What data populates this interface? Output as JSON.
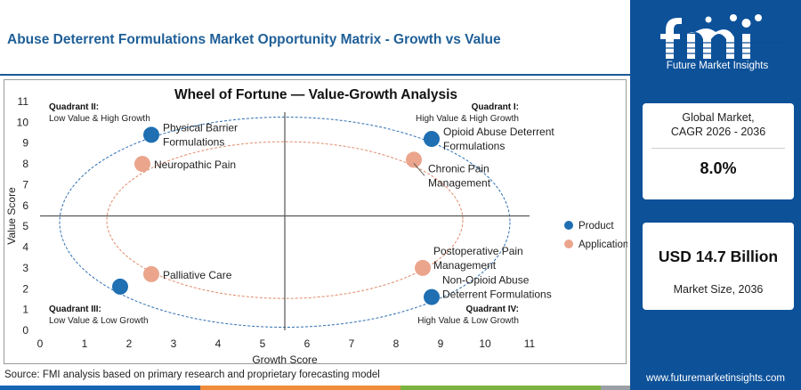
{
  "page": {
    "title": "Abuse Deterrent Formulations Market Opportunity Matrix - Growth vs Value",
    "source": "Source: FMI analysis based on primary research and proprietary forecasting model"
  },
  "brand": {
    "logo_text": "Future Market Insights",
    "website": "www.futuremarketinsights.com",
    "primary_color": "#0d5199",
    "bottom_bar_colors": [
      "#1565b5",
      "#f08c3a",
      "#7ab340",
      "#9aa0a6"
    ]
  },
  "stats": {
    "cagr_label_line1": "Global Market,",
    "cagr_label_line2": "CAGR 2026 - 2036",
    "cagr_value": "8.0%",
    "size_value": "USD 14.7 Billion",
    "size_label": "Market Size, 2036"
  },
  "chart_data": {
    "type": "scatter",
    "title": "Wheel of Fortune — Value-Growth Analysis",
    "xlabel": "Growth Score",
    "ylabel": "Value Score",
    "xlim": [
      0,
      11
    ],
    "ylim": [
      0,
      11
    ],
    "xticks": [
      0,
      1,
      2,
      3,
      4,
      5,
      6,
      7,
      8,
      9,
      10,
      11
    ],
    "yticks": [
      0,
      1,
      2,
      3,
      4,
      5,
      6,
      7,
      8,
      9,
      10,
      11
    ],
    "divider_x": 5.5,
    "divider_y": 5.5,
    "legend_position": "right",
    "legend": [
      {
        "name": "Product",
        "color": "#1f6fb2"
      },
      {
        "name": "Application",
        "color": "#eba58d"
      }
    ],
    "quadrants": [
      {
        "title": "Quadrant II:",
        "subtitle": "Low Value & High Growth",
        "position": "top-left"
      },
      {
        "title": "Quadrant I:",
        "subtitle": "High Value & High Growth",
        "position": "top-right"
      },
      {
        "title": "Quadrant III:",
        "subtitle": "Low Value & Low Growth",
        "position": "bottom-left"
      },
      {
        "title": "Quadrant IV:",
        "subtitle": "High Value & Low Growth",
        "position": "bottom-right"
      }
    ],
    "points": [
      {
        "label": "Physical Barrier Formulations",
        "lines": [
          "Physical Barrier",
          "Formulations"
        ],
        "x": 2.5,
        "y": 9.4,
        "series": "Product",
        "label_side": "right"
      },
      {
        "label": "Opioid Abuse Deterrent Formulations",
        "lines": [
          "Opioid Abuse Deterrent",
          "Formulations"
        ],
        "x": 8.8,
        "y": 9.2,
        "series": "Product",
        "label_side": "right"
      },
      {
        "label": "Palliative Care",
        "lines": [
          "Palliative Care"
        ],
        "x": 1.8,
        "y": 2.1,
        "series": "Product",
        "label_side": "none"
      },
      {
        "label": "Non-Opioid Abuse Deterrent Formulations",
        "lines": [
          "Non-Opioid Abuse",
          "Deterrent Formulations"
        ],
        "x": 8.8,
        "y": 1.6,
        "series": "Product",
        "label_side": "right-up"
      },
      {
        "label": "Neuropathic Pain",
        "lines": [
          "Neuropathic Pain"
        ],
        "x": 2.3,
        "y": 8.0,
        "series": "Application",
        "label_side": "right"
      },
      {
        "label": "Chronic Pain Management",
        "lines": [
          "Chronic Pain",
          "Management"
        ],
        "x": 8.4,
        "y": 8.2,
        "series": "Application",
        "label_side": "leader"
      },
      {
        "label": "Palliative Care",
        "lines": [
          "Palliative Care"
        ],
        "x": 2.5,
        "y": 2.7,
        "series": "Application",
        "label_side": "right"
      },
      {
        "label": "Postoperative Pain Management",
        "lines": [
          "Postoperative Pain",
          "Management"
        ],
        "x": 8.6,
        "y": 3.0,
        "series": "Application",
        "label_side": "right-up"
      }
    ]
  }
}
